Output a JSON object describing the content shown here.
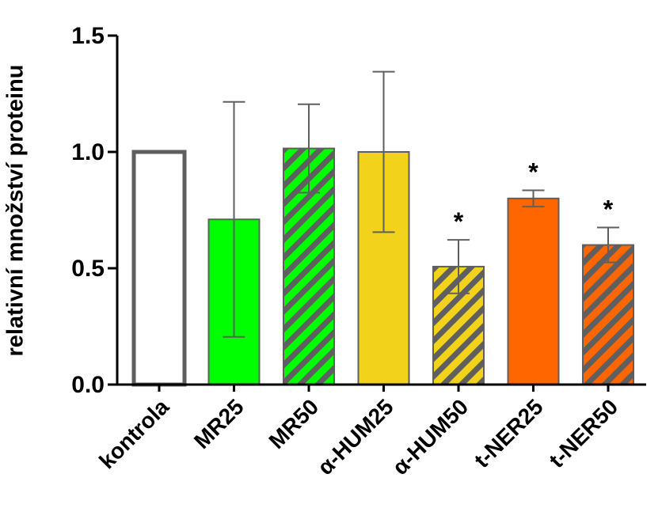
{
  "chart_data": {
    "type": "bar",
    "ylabel": "relativní množství proteinu",
    "xlabel": "",
    "title": "",
    "ylim": [
      0,
      1.5
    ],
    "yticks": [
      0.0,
      0.5,
      1.0,
      1.5
    ],
    "ytick_labels": [
      "0.0",
      "0.5",
      "1.0",
      "1.5"
    ],
    "grid": false,
    "categories": [
      "kontrola",
      "MR25",
      "MR50",
      "α-HUM25",
      "α-HUM50",
      "t-NER25",
      "t-NER50"
    ],
    "values": [
      1.0,
      0.71,
      1.015,
      1.0,
      0.507,
      0.8,
      0.6
    ],
    "error": [
      0,
      0.505,
      0.19,
      0.345,
      0.115,
      0.035,
      0.075
    ],
    "significance": [
      "",
      "",
      "",
      "",
      "*",
      "*",
      "*"
    ],
    "fill_colors": [
      "#ffffff",
      "#00ff00",
      "#00ff00",
      "#f2d21b",
      "#f2d21b",
      "#ff6600",
      "#ff6600"
    ],
    "hatched": [
      false,
      false,
      true,
      false,
      true,
      false,
      true
    ],
    "edge_color": "#5f5f5f",
    "axis_color": "#000000"
  }
}
